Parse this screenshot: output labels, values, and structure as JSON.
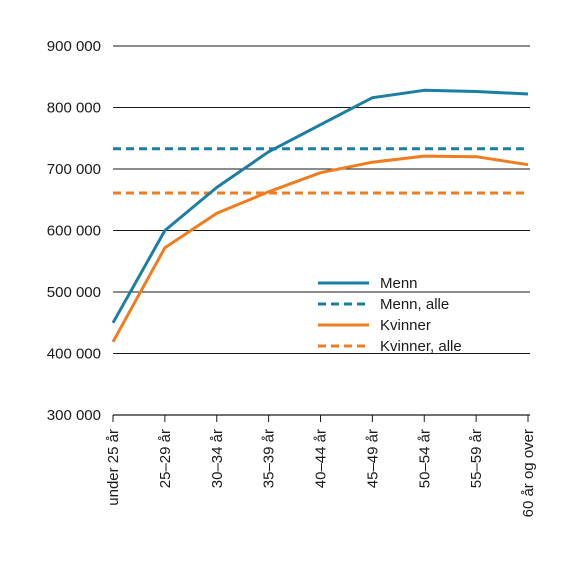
{
  "chart_data": {
    "type": "line",
    "title": "",
    "xlabel": "",
    "ylabel": "",
    "categories": [
      "under 25 år",
      "25–29 år",
      "30–34 år",
      "35–39 år",
      "40–44 år",
      "45–49 år",
      "50–54 år",
      "55–59 år",
      "60 år og over"
    ],
    "ylim": [
      300000,
      900000
    ],
    "yticks": [
      300000,
      400000,
      500000,
      600000,
      700000,
      800000,
      900000
    ],
    "ytick_labels": [
      "300 000",
      "400 000",
      "500 000",
      "600 000",
      "700 000",
      "800 000",
      "900 000"
    ],
    "grid": true,
    "legend_position": "right-center",
    "series": [
      {
        "name": "Menn",
        "style": "solid",
        "color": "#1a7fa3",
        "values": [
          450000,
          600000,
          670000,
          728000,
          772000,
          816000,
          828000,
          826000,
          822000
        ]
      },
      {
        "name": "Menn, alle",
        "style": "dashed",
        "color": "#1a7fa3",
        "values": [
          733000,
          733000,
          733000,
          733000,
          733000,
          733000,
          733000,
          733000,
          733000
        ]
      },
      {
        "name": "Kvinner",
        "style": "solid",
        "color": "#ef7d1f",
        "values": [
          419000,
          572000,
          628000,
          663000,
          694000,
          711000,
          721000,
          720000,
          707000
        ]
      },
      {
        "name": "Kvinner, alle",
        "style": "dashed",
        "color": "#ef7d1f",
        "values": [
          661000,
          661000,
          661000,
          661000,
          661000,
          661000,
          661000,
          661000,
          661000
        ]
      }
    ]
  }
}
